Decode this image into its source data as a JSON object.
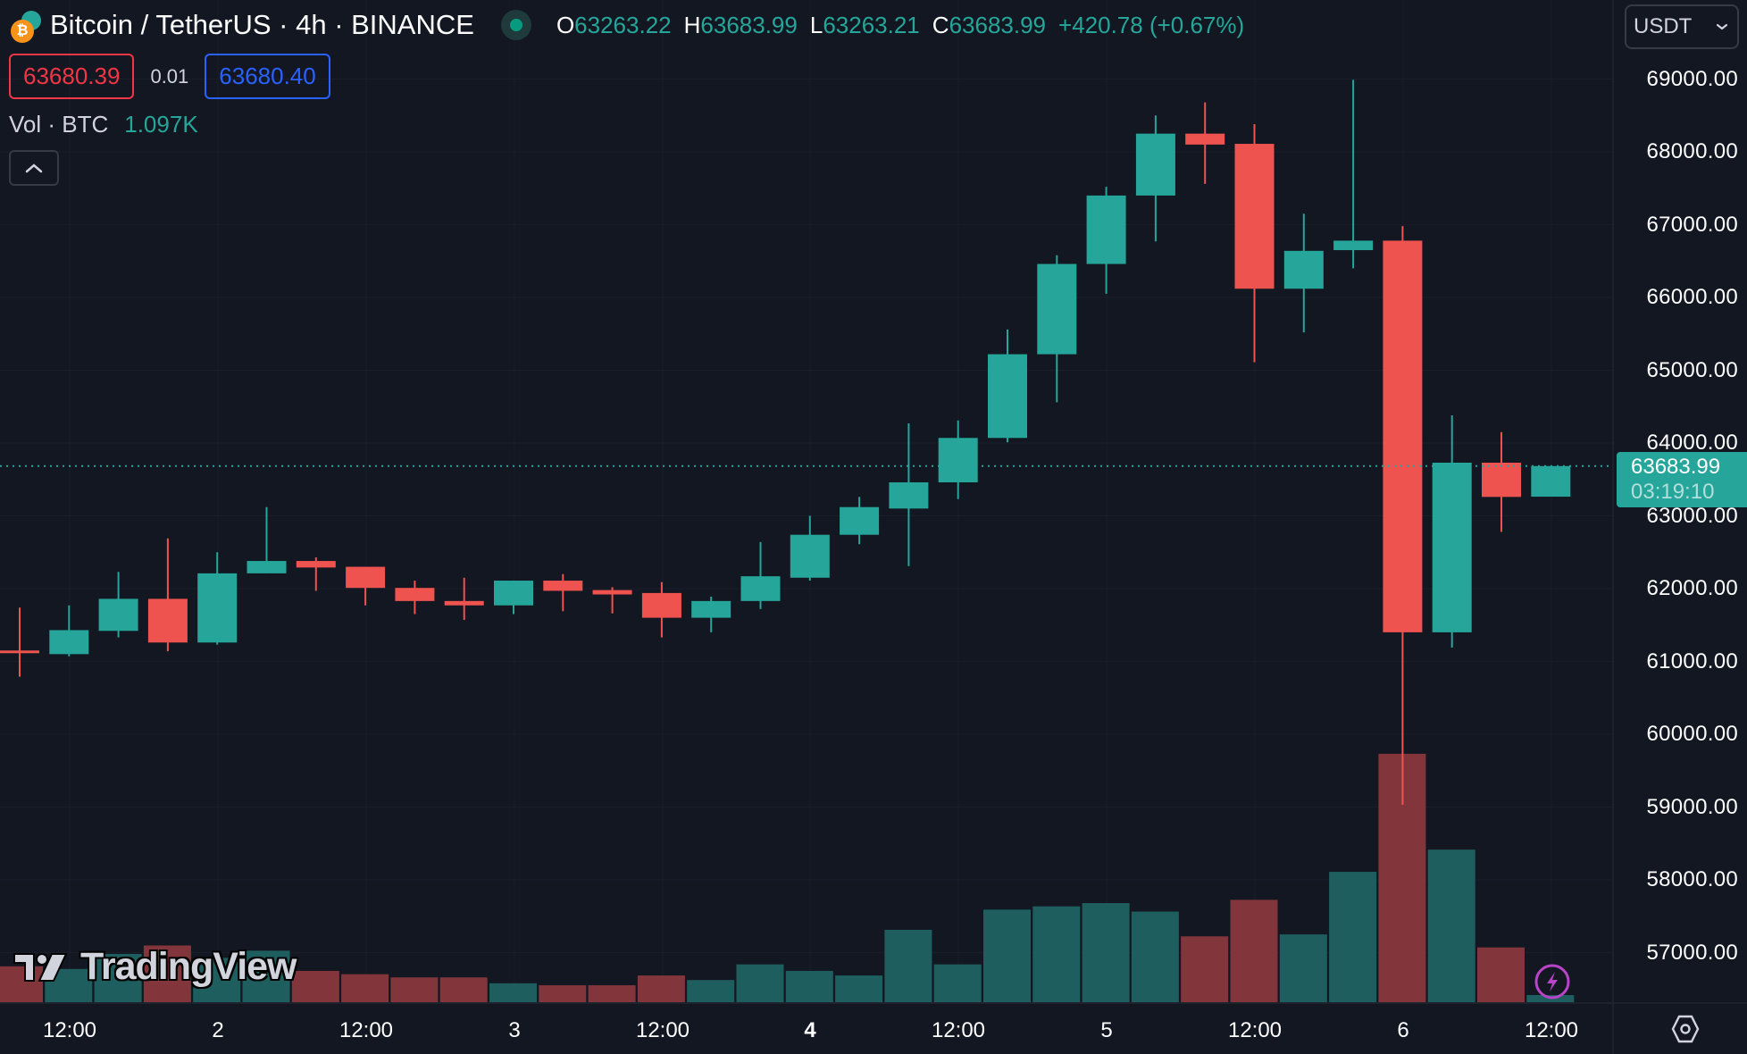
{
  "header": {
    "symbol_title": "Bitcoin / TetherUS · 4h · BINANCE",
    "btc_glyph": "₿",
    "ohlc": {
      "o_label": "O",
      "o_value": "63263.22",
      "h_label": "H",
      "h_value": "63683.99",
      "l_label": "L",
      "l_value": "63263.21",
      "c_label": "C",
      "c_value": "63683.99",
      "change": "+420.78 (+0.67%)"
    },
    "bid": "63680.39",
    "spread": "0.01",
    "ask": "63680.40",
    "volume_label": "Vol · BTC",
    "volume_value": "1.097K",
    "currency": "USDT"
  },
  "price_axis": {
    "labels": [
      "69000.00",
      "68000.00",
      "67000.00",
      "66000.00",
      "65000.00",
      "64000.00",
      "63000.00",
      "62000.00",
      "61000.00",
      "60000.00",
      "59000.00",
      "58000.00",
      "57000.00"
    ],
    "last_price": "63683.99",
    "countdown": "03:19:10"
  },
  "time_axis": {
    "labels": [
      {
        "text": "12:00",
        "bold": false
      },
      {
        "text": "2",
        "bold": false
      },
      {
        "text": "12:00",
        "bold": false
      },
      {
        "text": "3",
        "bold": false
      },
      {
        "text": "12:00",
        "bold": false
      },
      {
        "text": "4",
        "bold": true
      },
      {
        "text": "12:00",
        "bold": false
      },
      {
        "text": "5",
        "bold": false
      },
      {
        "text": "12:00",
        "bold": false
      },
      {
        "text": "6",
        "bold": false
      },
      {
        "text": "12:00",
        "bold": false
      }
    ]
  },
  "watermark": "TradingView",
  "icons": {
    "collapse": "chevron-up-icon",
    "currency_dropdown": "chevron-down-icon",
    "settings": "hexagon-settings-icon",
    "alert": "lightning-icon"
  },
  "colors": {
    "background": "#131722",
    "up": "#26a69a",
    "down": "#ef5350",
    "vol_up": "#1e5e5e",
    "vol_down": "#82363b",
    "bid": "#f23645",
    "ask": "#2962ff",
    "bolt": "#b845c8"
  },
  "chart_data": {
    "type": "candlestick",
    "title": "Bitcoin / TetherUS · 4h · BINANCE",
    "xlabel": "",
    "ylabel": "USDT",
    "ylim": [
      56400,
      69300
    ],
    "grid": true,
    "interval": "4h",
    "x_ticks": [
      "12:00",
      "2",
      "12:00",
      "3",
      "12:00",
      "4",
      "12:00",
      "5",
      "12:00",
      "6",
      "12:00"
    ],
    "y_ticks": [
      57000,
      58000,
      59000,
      60000,
      61000,
      62000,
      63000,
      64000,
      65000,
      66000,
      67000,
      68000,
      69000
    ],
    "columns": [
      "open",
      "high",
      "low",
      "close",
      "volume_btc"
    ],
    "candles": [
      [
        61150,
        61740,
        60790,
        61130,
        5500
      ],
      [
        61100,
        61770,
        61070,
        61430,
        5100
      ],
      [
        61420,
        62230,
        61330,
        61860,
        7400
      ],
      [
        61860,
        62690,
        61140,
        61260,
        8700
      ],
      [
        61260,
        62500,
        61230,
        62210,
        6800
      ],
      [
        62210,
        63120,
        62210,
        62380,
        7900
      ],
      [
        62380,
        62430,
        61970,
        62290,
        4800
      ],
      [
        62300,
        62280,
        61770,
        62010,
        4300
      ],
      [
        62010,
        62110,
        61650,
        61830,
        3800
      ],
      [
        61830,
        62150,
        61570,
        61770,
        3800
      ],
      [
        61770,
        62110,
        61650,
        62110,
        2900
      ],
      [
        62110,
        62200,
        61690,
        61970,
        2600
      ],
      [
        61980,
        62020,
        61660,
        61920,
        2600
      ],
      [
        61940,
        62090,
        61330,
        61600,
        4100
      ],
      [
        61600,
        61890,
        61400,
        61830,
        3400
      ],
      [
        61830,
        62640,
        61720,
        62170,
        5800
      ],
      [
        62150,
        63000,
        62110,
        62740,
        4800
      ],
      [
        62740,
        63260,
        62610,
        63120,
        4100
      ],
      [
        63100,
        64270,
        62310,
        63460,
        11100
      ],
      [
        63460,
        64310,
        63230,
        64070,
        5800
      ],
      [
        64070,
        65560,
        64010,
        65220,
        14200
      ],
      [
        65220,
        66580,
        64560,
        66460,
        14700
      ],
      [
        66460,
        67520,
        66050,
        67400,
        15200
      ],
      [
        67400,
        68500,
        66770,
        68250,
        13900
      ],
      [
        68250,
        68680,
        67560,
        68100,
        10100
      ],
      [
        68110,
        68380,
        65110,
        66120,
        15700
      ],
      [
        66120,
        67150,
        65520,
        66640,
        10400
      ],
      [
        66650,
        68990,
        66400,
        66780,
        20000
      ],
      [
        66780,
        66980,
        59030,
        61400,
        38100
      ],
      [
        61400,
        64380,
        61190,
        63730,
        23400
      ],
      [
        63730,
        64150,
        62780,
        63260,
        8400
      ],
      [
        63263.22,
        63683.99,
        63263.21,
        63683.99,
        1097
      ]
    ],
    "volume_series_name": "Vol · BTC",
    "last_price": 63683.99,
    "annotations": [
      "Bid 63680.39",
      "Ask 63680.40",
      "Spread 0.01",
      "Countdown 03:19:10"
    ]
  }
}
